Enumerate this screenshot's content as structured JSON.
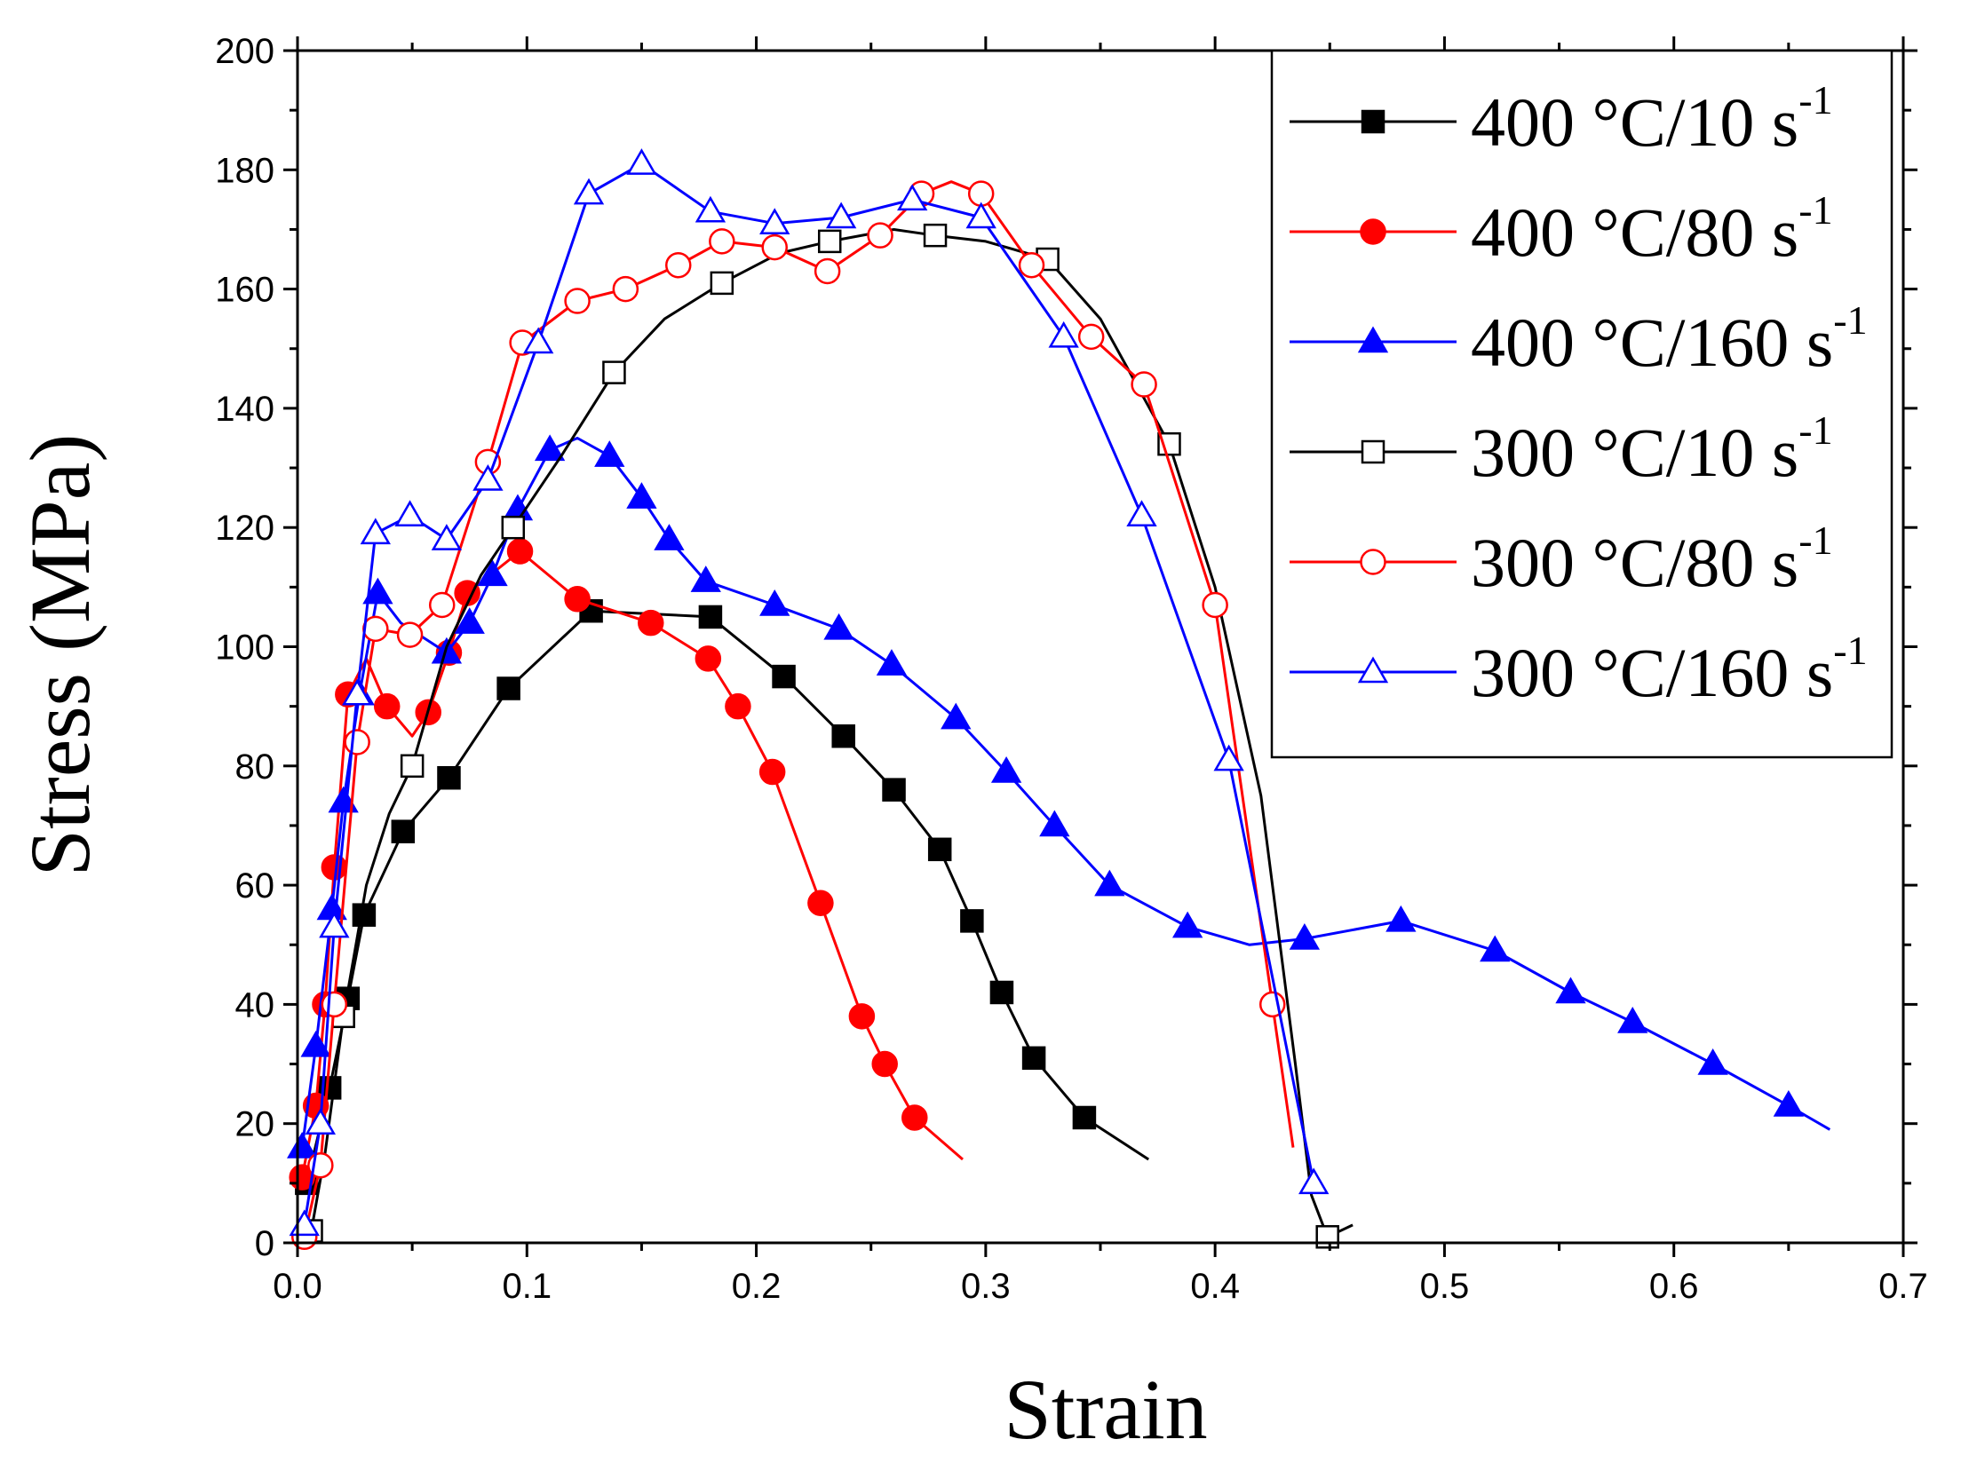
{
  "chart_data": {
    "type": "line",
    "title": "",
    "xlabel": "Strain",
    "ylabel": "Stress (MPa)",
    "xlim": [
      0.0,
      0.7
    ],
    "ylim": [
      0,
      200
    ],
    "x_ticks": [
      "0.0",
      "0.1",
      "0.2",
      "0.3",
      "0.4",
      "0.5",
      "0.6",
      "0.7"
    ],
    "y_ticks": [
      "0",
      "20",
      "40",
      "60",
      "80",
      "100",
      "120",
      "140",
      "160",
      "180",
      "200"
    ],
    "grid": false,
    "legend_position": "top-right",
    "series": [
      {
        "name": "400 °C/10 s",
        "name_sup": "-1",
        "color": "#000000",
        "marker": "square",
        "filled": true,
        "x": [
          0.004,
          0.014,
          0.022,
          0.029,
          0.046,
          0.066,
          0.092,
          0.128,
          0.18,
          0.212,
          0.238,
          0.26,
          0.28,
          0.294,
          0.307,
          0.321,
          0.343,
          0.371
        ],
        "y": [
          10,
          26,
          41,
          55,
          69,
          78,
          93,
          106,
          105,
          95,
          85,
          76,
          66,
          54,
          42,
          31,
          21,
          14
        ],
        "marker_points": [
          [
            0.004,
            10
          ],
          [
            0.014,
            26
          ],
          [
            0.022,
            41
          ],
          [
            0.029,
            55
          ],
          [
            0.046,
            69
          ],
          [
            0.066,
            78
          ],
          [
            0.092,
            93
          ],
          [
            0.128,
            106
          ],
          [
            0.18,
            105
          ],
          [
            0.212,
            95
          ],
          [
            0.238,
            85
          ],
          [
            0.26,
            76
          ],
          [
            0.28,
            66
          ],
          [
            0.294,
            54
          ],
          [
            0.307,
            42
          ],
          [
            0.321,
            31
          ],
          [
            0.343,
            21
          ]
        ]
      },
      {
        "name": "400 °C/80 s",
        "name_sup": "-1",
        "color": "#ff0000",
        "marker": "circle",
        "filled": true,
        "x": [
          0.002,
          0.008,
          0.012,
          0.016,
          0.022,
          0.03,
          0.039,
          0.05,
          0.057,
          0.066,
          0.074,
          0.097,
          0.122,
          0.154,
          0.179,
          0.192,
          0.207,
          0.228,
          0.246,
          0.256,
          0.269,
          0.29
        ],
        "y": [
          11,
          23,
          40,
          63,
          92,
          98,
          90,
          85,
          89,
          99,
          109,
          116,
          108,
          104,
          98,
          90,
          79,
          57,
          38,
          30,
          21,
          14
        ],
        "marker_points": [
          [
            0.002,
            11
          ],
          [
            0.008,
            23
          ],
          [
            0.012,
            40
          ],
          [
            0.016,
            63
          ],
          [
            0.022,
            92
          ],
          [
            0.039,
            90
          ],
          [
            0.057,
            89
          ],
          [
            0.066,
            99
          ],
          [
            0.074,
            109
          ],
          [
            0.097,
            116
          ],
          [
            0.122,
            108
          ],
          [
            0.154,
            104
          ],
          [
            0.179,
            98
          ],
          [
            0.192,
            90
          ],
          [
            0.207,
            79
          ],
          [
            0.228,
            57
          ],
          [
            0.246,
            38
          ],
          [
            0.256,
            30
          ],
          [
            0.269,
            21
          ]
        ]
      },
      {
        "name": "400 °C/160 s",
        "name_sup": "-1",
        "color": "#0000ff",
        "marker": "triangle",
        "filled": true,
        "x": [
          0.002,
          0.008,
          0.015,
          0.02,
          0.027,
          0.035,
          0.045,
          0.065,
          0.075,
          0.085,
          0.096,
          0.11,
          0.122,
          0.136,
          0.15,
          0.162,
          0.178,
          0.208,
          0.236,
          0.259,
          0.287,
          0.309,
          0.33,
          0.354,
          0.388,
          0.415,
          0.439,
          0.481,
          0.522,
          0.555,
          0.582,
          0.617,
          0.65,
          0.668
        ],
        "y": [
          16,
          33,
          56,
          74,
          92,
          109,
          104,
          99,
          104,
          112,
          123,
          133,
          135,
          132,
          125,
          118,
          111,
          107,
          103,
          97,
          88,
          79,
          70,
          60,
          53,
          50,
          51,
          54,
          49,
          42,
          37,
          30,
          23,
          19
        ],
        "marker_points": [
          [
            0.002,
            16
          ],
          [
            0.008,
            33
          ],
          [
            0.015,
            56
          ],
          [
            0.02,
            74
          ],
          [
            0.027,
            92
          ],
          [
            0.035,
            109
          ],
          [
            0.065,
            99
          ],
          [
            0.075,
            104
          ],
          [
            0.085,
            112
          ],
          [
            0.096,
            123
          ],
          [
            0.11,
            133
          ],
          [
            0.136,
            132
          ],
          [
            0.15,
            125
          ],
          [
            0.162,
            118
          ],
          [
            0.178,
            111
          ],
          [
            0.208,
            107
          ],
          [
            0.236,
            103
          ],
          [
            0.259,
            97
          ],
          [
            0.287,
            88
          ],
          [
            0.309,
            79
          ],
          [
            0.33,
            70
          ],
          [
            0.354,
            60
          ],
          [
            0.388,
            53
          ],
          [
            0.439,
            51
          ],
          [
            0.481,
            54
          ],
          [
            0.522,
            49
          ],
          [
            0.555,
            42
          ],
          [
            0.582,
            37
          ],
          [
            0.617,
            30
          ],
          [
            0.65,
            23
          ]
        ]
      },
      {
        "name": "300 °C/10 s",
        "name_sup": "-1",
        "color": "#000000",
        "marker": "square",
        "filled": false,
        "x": [
          0.006,
          0.012,
          0.02,
          0.03,
          0.04,
          0.05,
          0.065,
          0.08,
          0.094,
          0.115,
          0.138,
          0.16,
          0.185,
          0.21,
          0.232,
          0.26,
          0.278,
          0.3,
          0.327,
          0.35,
          0.38,
          0.4,
          0.42,
          0.435,
          0.442,
          0.449,
          0.46
        ],
        "y": [
          2,
          15,
          38,
          60,
          72,
          80,
          100,
          112,
          120,
          132,
          146,
          155,
          161,
          166,
          168,
          170,
          169,
          168,
          165,
          155,
          134,
          110,
          75,
          30,
          8,
          1,
          3
        ],
        "marker_points": [
          [
            0.006,
            2
          ],
          [
            0.02,
            38
          ],
          [
            0.05,
            80
          ],
          [
            0.094,
            120
          ],
          [
            0.138,
            146
          ],
          [
            0.185,
            161
          ],
          [
            0.232,
            168
          ],
          [
            0.278,
            169
          ],
          [
            0.327,
            165
          ],
          [
            0.38,
            134
          ],
          [
            0.449,
            1
          ]
        ]
      },
      {
        "name": "300 °C/80 s",
        "name_sup": "-1",
        "color": "#ff0000",
        "marker": "circle",
        "filled": false,
        "x": [
          0.003,
          0.01,
          0.016,
          0.026,
          0.034,
          0.049,
          0.063,
          0.083,
          0.098,
          0.122,
          0.143,
          0.166,
          0.185,
          0.208,
          0.231,
          0.254,
          0.272,
          0.285,
          0.298,
          0.32,
          0.346,
          0.369,
          0.4,
          0.425,
          0.434
        ],
        "y": [
          1,
          13,
          40,
          84,
          103,
          102,
          107,
          131,
          151,
          158,
          160,
          164,
          168,
          167,
          163,
          169,
          176,
          178,
          176,
          164,
          152,
          144,
          107,
          40,
          16
        ],
        "marker_points": [
          [
            0.003,
            1
          ],
          [
            0.01,
            13
          ],
          [
            0.016,
            40
          ],
          [
            0.026,
            84
          ],
          [
            0.034,
            103
          ],
          [
            0.049,
            102
          ],
          [
            0.063,
            107
          ],
          [
            0.083,
            131
          ],
          [
            0.098,
            151
          ],
          [
            0.122,
            158
          ],
          [
            0.143,
            160
          ],
          [
            0.166,
            164
          ],
          [
            0.185,
            168
          ],
          [
            0.208,
            167
          ],
          [
            0.231,
            163
          ],
          [
            0.254,
            169
          ],
          [
            0.272,
            176
          ],
          [
            0.298,
            176
          ],
          [
            0.32,
            164
          ],
          [
            0.346,
            152
          ],
          [
            0.369,
            144
          ],
          [
            0.4,
            107
          ],
          [
            0.425,
            40
          ]
        ]
      },
      {
        "name": "300 °C/160 s",
        "name_sup": "-1",
        "color": "#0000ff",
        "marker": "triangle",
        "filled": false,
        "x": [
          0.003,
          0.01,
          0.016,
          0.026,
          0.034,
          0.049,
          0.065,
          0.083,
          0.105,
          0.127,
          0.15,
          0.18,
          0.208,
          0.237,
          0.268,
          0.298,
          0.334,
          0.368,
          0.406,
          0.443
        ],
        "y": [
          3,
          20,
          53,
          92,
          119,
          122,
          118,
          128,
          151,
          176,
          181,
          173,
          171,
          172,
          175,
          172,
          152,
          122,
          81,
          10
        ],
        "marker_points": [
          [
            0.003,
            3
          ],
          [
            0.01,
            20
          ],
          [
            0.016,
            53
          ],
          [
            0.026,
            92
          ],
          [
            0.034,
            119
          ],
          [
            0.049,
            122
          ],
          [
            0.065,
            118
          ],
          [
            0.083,
            128
          ],
          [
            0.105,
            151
          ],
          [
            0.127,
            176
          ],
          [
            0.15,
            181
          ],
          [
            0.18,
            173
          ],
          [
            0.208,
            171
          ],
          [
            0.237,
            172
          ],
          [
            0.268,
            175
          ],
          [
            0.298,
            172
          ],
          [
            0.334,
            152
          ],
          [
            0.368,
            122
          ],
          [
            0.406,
            81
          ],
          [
            0.443,
            10
          ]
        ]
      }
    ]
  }
}
